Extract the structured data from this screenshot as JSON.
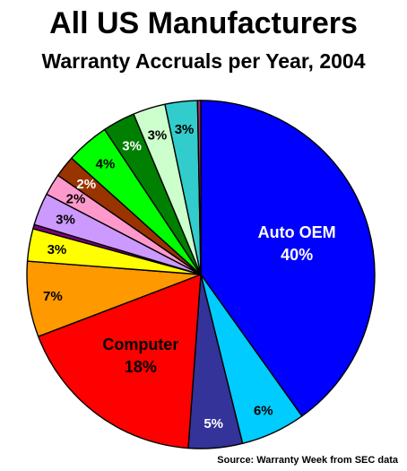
{
  "header": {
    "title": "All US Manufacturers",
    "subtitle": "Warranty Accruals per Year, 2004"
  },
  "footer": {
    "source": "Source: Warranty Week from SEC data"
  },
  "chart_data": {
    "type": "pie",
    "title": "All US Manufacturers",
    "subtitle": "Warranty Accruals per Year, 2004",
    "start": "12 o'clock",
    "direction": "clockwise",
    "slices": [
      {
        "name": "Auto OEM",
        "value": 40,
        "label": "Auto OEM\n40%",
        "color": "#0000FF",
        "text_color": "#FFFFFF"
      },
      {
        "name": "",
        "value": 6,
        "label": "6%",
        "color": "#00CCFF",
        "text_color": "#000000"
      },
      {
        "name": "",
        "value": 5,
        "label": "5%",
        "color": "#333399",
        "text_color": "#FFFFFF"
      },
      {
        "name": "Computer",
        "value": 18,
        "label": "Computer\n18%",
        "color": "#FF0000",
        "text_color": "#000000"
      },
      {
        "name": "",
        "value": 7,
        "label": "7%",
        "color": "#FF9900",
        "text_color": "#000000"
      },
      {
        "name": "",
        "value": 3,
        "label": "3%",
        "color": "#FFFF00",
        "text_color": "#000000"
      },
      {
        "name": "",
        "value": 0.4,
        "label": "",
        "color": "#800080",
        "text_color": "#000000"
      },
      {
        "name": "",
        "value": 3,
        "label": "3%",
        "color": "#CC99FF",
        "text_color": "#000000"
      },
      {
        "name": "",
        "value": 2,
        "label": "2%",
        "color": "#FF99CC",
        "text_color": "#000000"
      },
      {
        "name": "",
        "value": 2,
        "label": "2%",
        "color": "#993300",
        "text_color": "#FFFFFF"
      },
      {
        "name": "",
        "value": 4,
        "label": "4%",
        "color": "#00FF00",
        "text_color": "#000000"
      },
      {
        "name": "",
        "value": 3,
        "label": "3%",
        "color": "#008000",
        "text_color": "#FFFFFF"
      },
      {
        "name": "",
        "value": 3,
        "label": "3%",
        "color": "#CCFFCC",
        "text_color": "#000000"
      },
      {
        "name": "",
        "value": 3,
        "label": "3%",
        "color": "#33CCCC",
        "text_color": "#000000"
      },
      {
        "name": "",
        "value": 0.3,
        "label": "",
        "color": "#993366",
        "text_color": "#000000"
      }
    ]
  }
}
